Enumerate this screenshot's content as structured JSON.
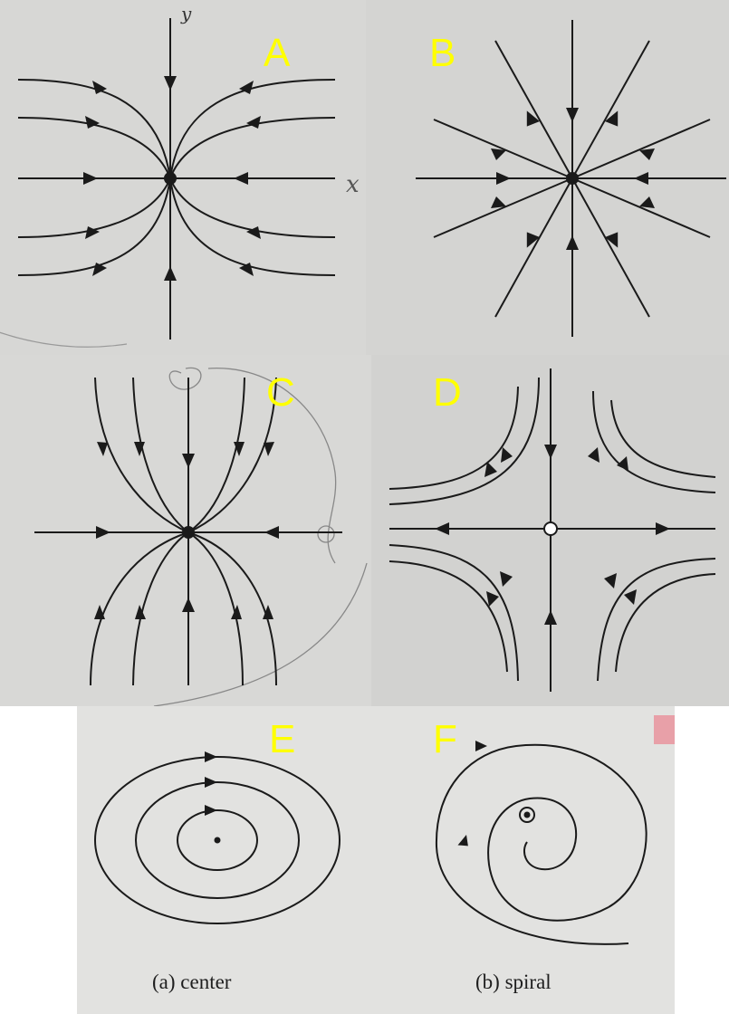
{
  "panels": {
    "A": {
      "label": "A",
      "axis_label_y": "y",
      "axis_label_x": "x",
      "background": "#d7d7d5"
    },
    "B": {
      "label": "B",
      "background": "#d4d4d2"
    },
    "C": {
      "label": "C",
      "background": "#d8d8d6"
    },
    "D": {
      "label": "D",
      "background": "#d2d2d0"
    },
    "E": {
      "label": "E",
      "caption": "(a)  center",
      "background": "#e2e2e0"
    },
    "F": {
      "label": "F",
      "caption": "(b)  spiral",
      "background": "#e2e2e0"
    }
  },
  "colors": {
    "label": "#ffff00",
    "ink": "#1a1a1a"
  }
}
